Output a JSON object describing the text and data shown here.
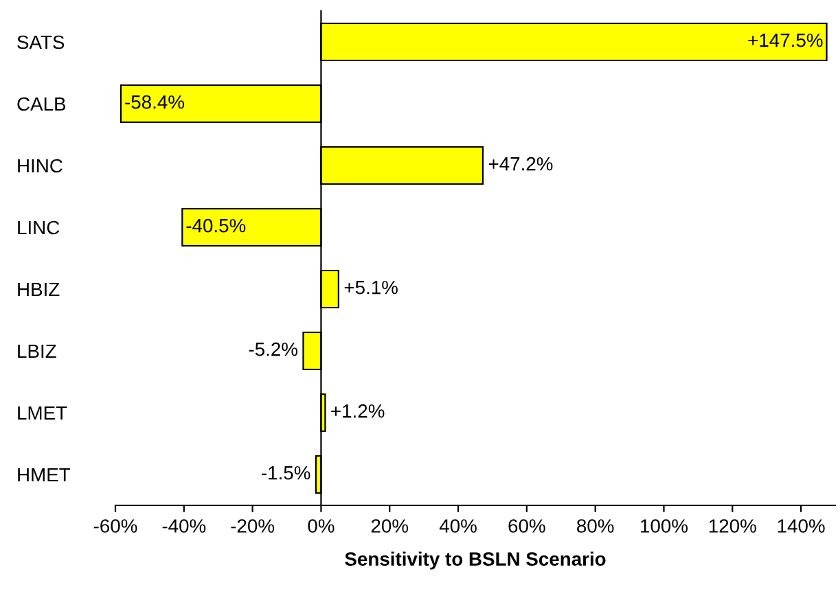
{
  "chart_data": {
    "type": "bar",
    "orientation": "horizontal",
    "xlabel": "Sensitivity to BSLN Scenario",
    "categories": [
      "SATS",
      "CALB",
      "HINC",
      "LINC",
      "HBIZ",
      "LBIZ",
      "LMET",
      "HMET"
    ],
    "values": [
      147.5,
      -58.4,
      47.2,
      -40.5,
      5.1,
      -5.2,
      1.2,
      -1.5
    ],
    "value_labels": [
      "+147.5%",
      "-58.4%",
      "+47.2%",
      "-40.5%",
      "+5.1%",
      "-5.2%",
      "+1.2%",
      "-1.5%"
    ],
    "color": "#ffff00",
    "xlim": [
      -60,
      150
    ],
    "xticks": [
      {
        "value": -60,
        "label": "-60%"
      },
      {
        "value": -40,
        "label": "-40%"
      },
      {
        "value": -20,
        "label": "-20%"
      },
      {
        "value": 0,
        "label": "0%"
      },
      {
        "value": 20,
        "label": "20%"
      },
      {
        "value": 40,
        "label": "40%"
      },
      {
        "value": 60,
        "label": "60%"
      },
      {
        "value": 80,
        "label": "80%"
      },
      {
        "value": 100,
        "label": "100%"
      },
      {
        "value": 120,
        "label": "120%"
      },
      {
        "value": 140,
        "label": "140%"
      }
    ],
    "legend": false
  }
}
